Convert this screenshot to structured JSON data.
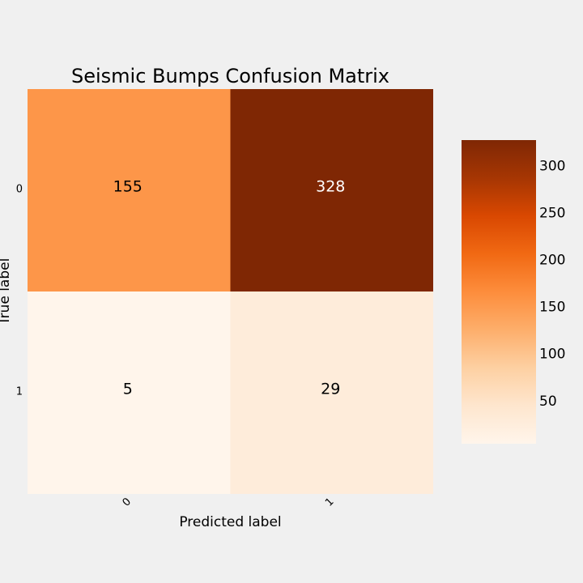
{
  "chart_data": {
    "type": "heatmap",
    "title": "Seismic Bumps Confusion Matrix",
    "xlabel": "Predicted label",
    "ylabel": "True label",
    "x_ticks": [
      "0",
      "1"
    ],
    "y_ticks": [
      "0",
      "1"
    ],
    "values": [
      [
        155,
        328
      ],
      [
        5,
        29
      ]
    ],
    "colormap": "Oranges",
    "colorbar": {
      "min": 5,
      "max": 328,
      "ticks": [
        50,
        100,
        150,
        200,
        250,
        300
      ],
      "tick_labels": [
        "50",
        "100",
        "150",
        "200",
        "250",
        "300"
      ]
    },
    "grid": false
  }
}
